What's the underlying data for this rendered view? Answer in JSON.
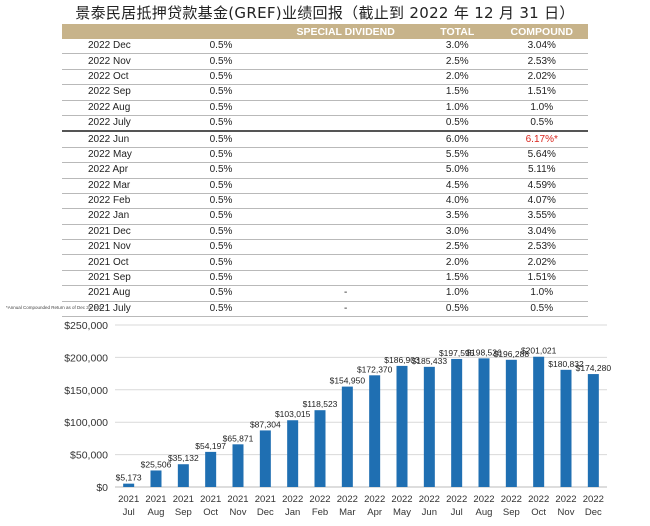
{
  "title": "景泰民居抵押贷款基金(GREF)业绩回报（截止到 2022 年 12 月 31 日）",
  "table": {
    "headers": [
      "",
      "",
      "SPECIAL DIVIDEND",
      "TOTAL",
      "COMPOUND"
    ],
    "rows": [
      {
        "date": "2022 Dec",
        "rate": "0.5%",
        "special": "",
        "total": "3.0%",
        "compound": "3.04%"
      },
      {
        "date": "2022 Nov",
        "rate": "0.5%",
        "special": "",
        "total": "2.5%",
        "compound": "2.53%"
      },
      {
        "date": "2022 Oct",
        "rate": "0.5%",
        "special": "",
        "total": "2.0%",
        "compound": "2.02%"
      },
      {
        "date": "2022 Sep",
        "rate": "0.5%",
        "special": "",
        "total": "1.5%",
        "compound": "1.51%"
      },
      {
        "date": "2022 Aug",
        "rate": "0.5%",
        "special": "",
        "total": "1.0%",
        "compound": "1.0%"
      },
      {
        "date": "2022 July",
        "rate": "0.5%",
        "special": "",
        "total": "0.5%",
        "compound": "0.5%"
      },
      {
        "date": "2022 Jun",
        "rate": "0.5%",
        "special": "",
        "total": "6.0%",
        "compound": "6.17%*",
        "highlight": true
      },
      {
        "date": "2022 May",
        "rate": "0.5%",
        "special": "",
        "total": "5.5%",
        "compound": "5.64%"
      },
      {
        "date": "2022 Apr",
        "rate": "0.5%",
        "special": "",
        "total": "5.0%",
        "compound": "5.11%"
      },
      {
        "date": "2022 Mar",
        "rate": "0.5%",
        "special": "",
        "total": "4.5%",
        "compound": "4.59%"
      },
      {
        "date": "2022 Feb",
        "rate": "0.5%",
        "special": "",
        "total": "4.0%",
        "compound": "4.07%"
      },
      {
        "date": "2022 Jan",
        "rate": "0.5%",
        "special": "",
        "total": "3.5%",
        "compound": "3.55%"
      },
      {
        "date": "2021 Dec",
        "rate": "0.5%",
        "special": "",
        "total": "3.0%",
        "compound": "3.04%"
      },
      {
        "date": "2021 Nov",
        "rate": "0.5%",
        "special": "",
        "total": "2.5%",
        "compound": "2.53%"
      },
      {
        "date": "2021 Oct",
        "rate": "0.5%",
        "special": "",
        "total": "2.0%",
        "compound": "2.02%"
      },
      {
        "date": "2021 Sep",
        "rate": "0.5%",
        "special": "",
        "total": "1.5%",
        "compound": "1.51%"
      },
      {
        "date": "2021 Aug",
        "rate": "0.5%",
        "special": "-",
        "total": "1.0%",
        "compound": "1.0%"
      },
      {
        "date": "2021 July",
        "rate": "0.5%",
        "special": "-",
        "total": "0.5%",
        "compound": "0.5%"
      }
    ]
  },
  "footnote": "*Annual Compounded Return as of Dec 31, 2022",
  "colors": {
    "bar": "#1f6fb2",
    "header": "#c7b38a",
    "highlight": "#d9251d"
  },
  "chart_data": {
    "type": "bar",
    "categories": [
      [
        "2021",
        "Jul"
      ],
      [
        "2021",
        "Aug"
      ],
      [
        "2021",
        "Sep"
      ],
      [
        "2021",
        "Oct"
      ],
      [
        "2021",
        "Nov"
      ],
      [
        "2021",
        "Dec"
      ],
      [
        "2022",
        "Jan"
      ],
      [
        "2022",
        "Feb"
      ],
      [
        "2022",
        "Mar"
      ],
      [
        "2022",
        "Apr"
      ],
      [
        "2022",
        "May"
      ],
      [
        "2022",
        "Jun"
      ],
      [
        "2022",
        "Jul"
      ],
      [
        "2022",
        "Aug"
      ],
      [
        "2022",
        "Sep"
      ],
      [
        "2022",
        "Oct"
      ],
      [
        "2022",
        "Nov"
      ],
      [
        "2022",
        "Dec"
      ]
    ],
    "values": [
      5173,
      25506,
      35132,
      54197,
      65871,
      87304,
      103015,
      118523,
      154950,
      172370,
      186903,
      185433,
      197595,
      198526,
      196288,
      201021,
      180832,
      174280
    ],
    "labels": [
      "$5,173",
      "$25,506",
      "$35,132",
      "$54,197",
      "$65,871",
      "$87,304",
      "$103,015",
      "$118,523",
      "$154,950",
      "$172,370",
      "$186,903",
      "$185,433",
      "$197,595",
      "$198,526",
      "$196,288",
      "$201,021",
      "$180,832",
      "$174,280"
    ],
    "yticks": [
      "$0",
      "$50,000",
      "$100,000",
      "$150,000",
      "$200,000",
      "$250,000"
    ],
    "ylim": [
      0,
      250000
    ],
    "grid": true,
    "legend": "none"
  }
}
